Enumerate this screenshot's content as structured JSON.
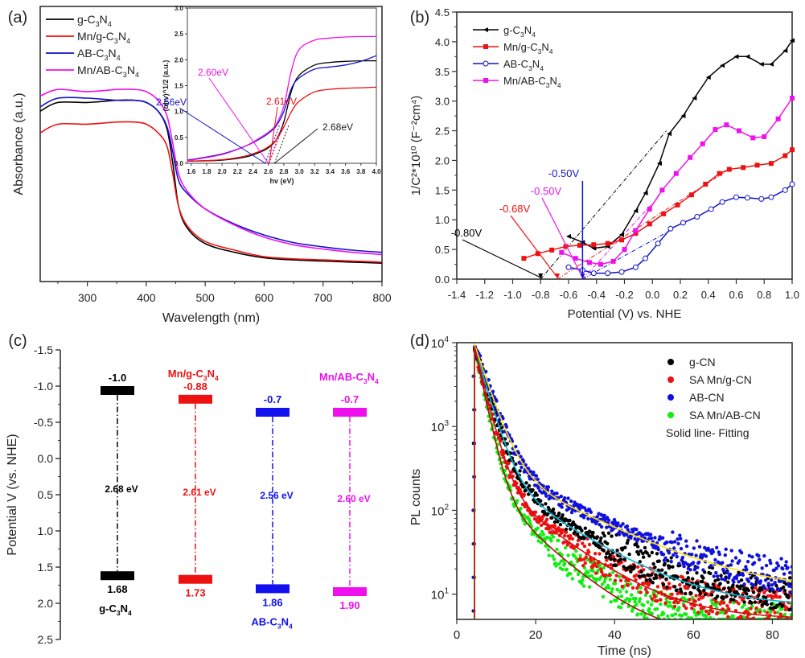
{
  "figure": {
    "panel_labels": [
      "(a)",
      "(b)",
      "(c)",
      "(d)"
    ]
  },
  "chart_data": [
    {
      "id": "a",
      "type": "line",
      "title": "",
      "xlabel": "Wavelength (nm)",
      "ylabel": "Absorbance (a.u.)",
      "xlim": [
        220,
        800
      ],
      "ylim": [
        0,
        1.0
      ],
      "xticks": [
        300,
        400,
        500,
        600,
        700,
        800
      ],
      "legend_position": "top-left",
      "series": [
        {
          "name": "g-C3N4",
          "label_parts": [
            "g-C",
            "3",
            "N",
            "4"
          ],
          "color": "#000000",
          "x": [
            220,
            250,
            300,
            350,
            380,
            400,
            420,
            435,
            445,
            455,
            470,
            500,
            550,
            600,
            650,
            700,
            750,
            800
          ],
          "y": [
            0.74,
            0.78,
            0.78,
            0.79,
            0.79,
            0.78,
            0.74,
            0.66,
            0.5,
            0.3,
            0.2,
            0.13,
            0.09,
            0.065,
            0.055,
            0.05,
            0.045,
            0.04
          ]
        },
        {
          "name": "Mn/g-C3N4",
          "label_parts": [
            "Mn/g-C",
            "3",
            "N",
            "4"
          ],
          "color": "#ee1111",
          "x": [
            220,
            250,
            300,
            350,
            380,
            400,
            420,
            435,
            445,
            455,
            470,
            500,
            550,
            600,
            650,
            700,
            750,
            800
          ],
          "y": [
            0.64,
            0.68,
            0.68,
            0.69,
            0.69,
            0.68,
            0.64,
            0.58,
            0.45,
            0.3,
            0.21,
            0.14,
            0.1,
            0.07,
            0.06,
            0.055,
            0.05,
            0.045
          ]
        },
        {
          "name": "AB-C3N4",
          "label_parts": [
            "AB-C",
            "3",
            "N",
            "4"
          ],
          "color": "#1111cc",
          "x": [
            220,
            250,
            300,
            350,
            380,
            400,
            420,
            435,
            445,
            455,
            470,
            500,
            550,
            600,
            650,
            700,
            750,
            800
          ],
          "y": [
            0.76,
            0.8,
            0.8,
            0.79,
            0.79,
            0.78,
            0.74,
            0.67,
            0.55,
            0.42,
            0.36,
            0.29,
            0.22,
            0.17,
            0.135,
            0.115,
            0.1,
            0.09
          ]
        },
        {
          "name": "Mn/AB-C3N4",
          "label_parts": [
            "Mn/AB-C",
            "3",
            "N",
            "4"
          ],
          "color": "#ee11ee",
          "x": [
            220,
            250,
            300,
            350,
            380,
            400,
            420,
            435,
            445,
            455,
            470,
            500,
            550,
            600,
            650,
            700,
            750,
            800
          ],
          "y": [
            0.81,
            0.84,
            0.83,
            0.84,
            0.84,
            0.83,
            0.79,
            0.72,
            0.59,
            0.45,
            0.37,
            0.29,
            0.215,
            0.16,
            0.125,
            0.105,
            0.09,
            0.08
          ]
        }
      ],
      "inset": {
        "type": "line",
        "xlabel": "hv (eV)",
        "ylabel": "(αhv)^1/2 (a.u.)",
        "xlim": [
          1.55,
          4.0
        ],
        "ylim": [
          0,
          3.0
        ],
        "xticks": [
          1.6,
          1.8,
          2.0,
          2.2,
          2.4,
          2.6,
          2.8,
          3.0,
          3.2,
          3.4,
          3.6,
          3.8,
          4.0
        ],
        "yticks": [
          0.0,
          0.5,
          1.0,
          1.5,
          2.0,
          2.5,
          3.0
        ],
        "series": [
          {
            "name": "g-C3N4",
            "color": "#000000",
            "x": [
              1.55,
              2.0,
              2.3,
              2.5,
              2.6,
              2.7,
              2.8,
              2.9,
              3.0,
              3.2,
              3.4,
              3.6,
              3.8,
              4.0
            ],
            "y": [
              0.04,
              0.06,
              0.12,
              0.22,
              0.3,
              0.45,
              0.8,
              1.4,
              1.7,
              1.9,
              1.95,
              1.97,
              1.98,
              1.98
            ]
          },
          {
            "name": "Mn/g-C3N4",
            "color": "#ee1111",
            "x": [
              1.55,
              2.0,
              2.3,
              2.5,
              2.6,
              2.7,
              2.8,
              2.9,
              3.0,
              3.2,
              3.4,
              3.6,
              3.8,
              4.0
            ],
            "y": [
              0.04,
              0.07,
              0.14,
              0.24,
              0.32,
              0.45,
              0.7,
              1.0,
              1.2,
              1.38,
              1.43,
              1.45,
              1.46,
              1.47
            ]
          },
          {
            "name": "AB-C3N4",
            "color": "#1111cc",
            "x": [
              1.55,
              2.0,
              2.3,
              2.5,
              2.6,
              2.7,
              2.8,
              2.9,
              3.0,
              3.2,
              3.4,
              3.6,
              3.8,
              4.0
            ],
            "y": [
              0.06,
              0.18,
              0.33,
              0.48,
              0.58,
              0.72,
              1.0,
              1.45,
              1.65,
              1.82,
              1.86,
              1.9,
              1.97,
              2.08
            ]
          },
          {
            "name": "Mn/AB-C3N4",
            "color": "#ee11ee",
            "x": [
              1.55,
              2.0,
              2.3,
              2.5,
              2.6,
              2.7,
              2.8,
              2.9,
              3.0,
              3.2,
              3.4,
              3.6,
              3.8,
              4.0
            ],
            "y": [
              0.05,
              0.17,
              0.33,
              0.5,
              0.6,
              0.75,
              1.1,
              1.8,
              2.2,
              2.38,
              2.42,
              2.44,
              2.45,
              2.45
            ]
          }
        ],
        "annotations": [
          {
            "text": "2.60eV",
            "value": 2.6,
            "color": "#ee11ee"
          },
          {
            "text": "2.56eV",
            "value": 2.56,
            "color": "#1111cc"
          },
          {
            "text": "2.61eV",
            "value": 2.61,
            "color": "#ee1111"
          },
          {
            "text": "2.68eV",
            "value": 2.68,
            "color": "#222222"
          }
        ]
      }
    },
    {
      "id": "b",
      "type": "line",
      "title": "",
      "xlabel": "Potential (V) vs. NHE",
      "ylabel": "1/C²*10¹⁰ (F⁻²cm⁴)",
      "xlim": [
        -1.4,
        1.0
      ],
      "ylim": [
        0,
        4.5
      ],
      "xticks": [
        -1.4,
        -1.2,
        -1.0,
        -0.8,
        -0.6,
        -0.4,
        -0.2,
        0.0,
        0.2,
        0.4,
        0.6,
        0.8,
        1.0
      ],
      "yticks": [
        0.0,
        0.5,
        1.0,
        1.5,
        2.0,
        2.5,
        3.0,
        3.5,
        4.0,
        4.5
      ],
      "legend_position": "top-left",
      "series": [
        {
          "name": "g-C3N4",
          "label_parts": [
            "g-C",
            "3",
            "N",
            "4"
          ],
          "color": "#000000",
          "marker": "triangle-left",
          "x": [
            -0.6,
            -0.5,
            -0.42,
            -0.32,
            -0.22,
            -0.12,
            -0.05,
            0.05,
            0.12,
            0.22,
            0.3,
            0.4,
            0.5,
            0.6,
            0.68,
            0.78,
            0.85,
            0.95,
            1.0
          ],
          "y": [
            0.72,
            0.62,
            0.52,
            0.55,
            0.75,
            1.15,
            1.45,
            1.95,
            2.45,
            2.75,
            3.05,
            3.4,
            3.6,
            3.75,
            3.75,
            3.62,
            3.62,
            3.85,
            4.02
          ]
        },
        {
          "name": "Mn/g-C3N4",
          "label_parts": [
            "Mn/g-C",
            "3",
            "N",
            "4"
          ],
          "color": "#ee1111",
          "marker": "square",
          "x": [
            -0.92,
            -0.82,
            -0.72,
            -0.62,
            -0.52,
            -0.42,
            -0.32,
            -0.22,
            -0.12,
            -0.02,
            0.08,
            0.18,
            0.28,
            0.38,
            0.48,
            0.55,
            0.65,
            0.75,
            0.85,
            0.95,
            1.0
          ],
          "y": [
            0.35,
            0.43,
            0.49,
            0.55,
            0.57,
            0.58,
            0.6,
            0.66,
            0.77,
            0.93,
            1.1,
            1.25,
            1.42,
            1.6,
            1.78,
            1.85,
            1.88,
            1.92,
            1.95,
            2.08,
            2.18
          ]
        },
        {
          "name": "AB-C3N4",
          "label_parts": [
            "AB-C",
            "3",
            "N",
            "4"
          ],
          "color": "#1111cc",
          "marker": "circle-open",
          "x": [
            -0.6,
            -0.5,
            -0.42,
            -0.32,
            -0.22,
            -0.12,
            -0.05,
            0.04,
            0.13,
            0.22,
            0.32,
            0.42,
            0.5,
            0.6,
            0.68,
            0.78,
            0.85,
            0.95,
            1.0
          ],
          "y": [
            0.2,
            0.15,
            0.1,
            0.1,
            0.12,
            0.2,
            0.35,
            0.6,
            0.85,
            0.95,
            1.05,
            1.18,
            1.3,
            1.38,
            1.37,
            1.35,
            1.38,
            1.5,
            1.6
          ]
        },
        {
          "name": "Mn/AB-C3N4",
          "label_parts": [
            "Mn/AB-C",
            "3",
            "N",
            "4"
          ],
          "color": "#ee11ee",
          "marker": "square",
          "x": [
            -0.65,
            -0.55,
            -0.45,
            -0.37,
            -0.28,
            -0.2,
            -0.12,
            -0.02,
            0.07,
            0.17,
            0.27,
            0.36,
            0.45,
            0.53,
            0.62,
            0.72,
            0.8,
            0.9,
            1.0
          ],
          "y": [
            0.45,
            0.35,
            0.28,
            0.25,
            0.3,
            0.5,
            0.82,
            1.18,
            1.5,
            1.78,
            2.05,
            2.28,
            2.52,
            2.6,
            2.5,
            2.38,
            2.4,
            2.7,
            3.05
          ]
        }
      ],
      "annotations": [
        {
          "text": "-0.80V",
          "value": -0.8,
          "color": "#000000"
        },
        {
          "text": "-0.68V",
          "value": -0.68,
          "color": "#ee1111"
        },
        {
          "text": "-0.50V",
          "value": -0.5,
          "color": "#ee11ee"
        },
        {
          "text": "-0.50V",
          "value": -0.5,
          "color": "#1111cc"
        }
      ]
    },
    {
      "id": "c",
      "type": "bar",
      "title": "",
      "xlabel": "",
      "ylabel": "Potential V (vs. NHE)",
      "ylim": [
        -1.5,
        2.5
      ],
      "y_inverted": true,
      "yticks": [
        -1.5,
        -1.0,
        -0.5,
        0.0,
        0.5,
        1.0,
        1.5,
        2.0,
        2.5
      ],
      "ytick_labels": [
        "-1.5",
        "-1.0",
        "-0.5",
        "0.0",
        "0.5",
        "1.0",
        "1.5",
        "2.0",
        "2.5"
      ],
      "materials": [
        {
          "name": "g-C3N4",
          "name_parts": [
            "g-C",
            "3",
            "N",
            "4"
          ],
          "name_position": "bottom",
          "color": "#000000",
          "cb": -1.0,
          "cb_label": "-1.0",
          "vb": 1.68,
          "vb_label": "1.68",
          "gap_label": "2.68 eV"
        },
        {
          "name": "Mn/g-C3N4",
          "name_parts": [
            "Mn/g-C",
            "3",
            "N",
            "4"
          ],
          "name_position": "top",
          "color": "#ee1111",
          "cb": -0.88,
          "cb_label": "-0.88",
          "vb": 1.73,
          "vb_label": "1.73",
          "gap_label": "2.61 eV"
        },
        {
          "name": "AB-C3N4",
          "name_parts": [
            "AB-C",
            "3",
            "N",
            "4"
          ],
          "name_position": "bottom",
          "color": "#1111ee",
          "cb": -0.7,
          "cb_label": "-0.7",
          "vb": 1.86,
          "vb_label": "1.86",
          "gap_label": "2.56 eV"
        },
        {
          "name": "Mn/AB-C3N4",
          "name_parts": [
            "Mn/AB-C",
            "3",
            "N",
            "4"
          ],
          "name_position": "top",
          "color": "#ee11ee",
          "cb": -0.7,
          "cb_label": "-0.7",
          "vb": 1.9,
          "vb_label": "1.90",
          "gap_label": "2.60 eV"
        }
      ]
    },
    {
      "id": "d",
      "type": "scatter",
      "title": "",
      "xlabel": "Time (ns)",
      "ylabel": "PL counts",
      "xlim": [
        0,
        85
      ],
      "ylim": [
        5,
        10000
      ],
      "yscale": "log",
      "xticks": [
        0,
        20,
        40,
        60,
        80
      ],
      "yticks": [
        10,
        100,
        1000,
        10000
      ],
      "ytick_labels": [
        [
          "10",
          "1"
        ],
        [
          "10",
          "2"
        ],
        [
          "10",
          "3"
        ],
        [
          "10",
          "4"
        ]
      ],
      "legend_position": "top-right",
      "legend_note": "Solid line- Fitting",
      "peak_time": 4.5,
      "series": [
        {
          "name": "g-CN",
          "color": "#000000",
          "fit_color": "#00bcd4",
          "amp": 9000,
          "tau1": 2.6,
          "tau2": 14,
          "frac2": 0.035,
          "floor": 9
        },
        {
          "name": "SA Mn/g-CN",
          "color": "#ee1111",
          "fit_color": "#cc1111",
          "amp": 9000,
          "tau1": 2.2,
          "tau2": 12,
          "frac2": 0.03,
          "floor": 7
        },
        {
          "name": "AB-CN",
          "color": "#1111dd",
          "fit_color": "#ffe100",
          "amp": 9500,
          "tau1": 3.0,
          "tau2": 18,
          "frac2": 0.04,
          "floor": 12
        },
        {
          "name": "SA Mn/AB-CN",
          "color": "#11ee11",
          "fit_color": "#aa1111",
          "amp": 9000,
          "tau1": 1.9,
          "tau2": 10,
          "frac2": 0.025,
          "floor": 5
        }
      ]
    }
  ]
}
